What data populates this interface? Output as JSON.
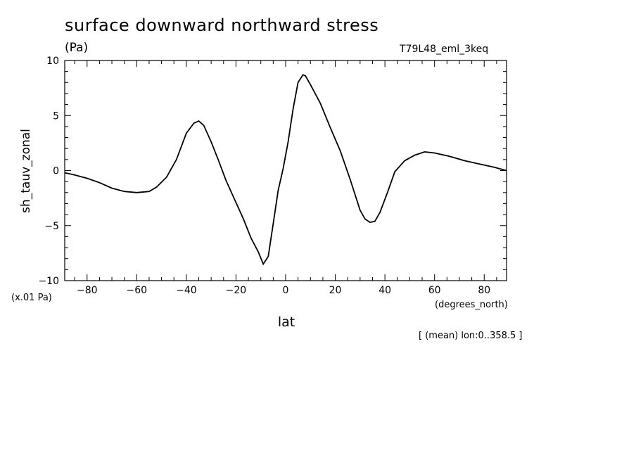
{
  "chart_data": {
    "type": "line",
    "title": "surface downward northward stress",
    "units": "(Pa)",
    "run_label": "T79L48_eml_3keq",
    "ylabel": "sh_tauv_zonal",
    "xlabel": "lat",
    "y_scale_label": "(x.01 Pa)",
    "x_units": "(degrees_north)",
    "note": "[ (mean) lon:0..358.5 ]",
    "xlim": [
      -89,
      89
    ],
    "ylim": [
      -10,
      10
    ],
    "x_ticks": [
      -80,
      -60,
      -40,
      -20,
      0,
      20,
      40,
      60,
      80
    ],
    "y_ticks": [
      -10,
      -5,
      0,
      5,
      10
    ],
    "grid": false,
    "series": [
      {
        "x": [
          -89,
          -85,
          -80,
          -75,
          -70,
          -65,
          -60,
          -55,
          -52,
          -48,
          -44,
          -40,
          -37,
          -35,
          -33,
          -30,
          -27,
          -24,
          -20,
          -17,
          -14,
          -11,
          -9,
          -7,
          -5,
          -3,
          -1,
          1,
          3,
          5,
          7,
          8,
          10,
          14,
          18,
          22,
          26,
          30,
          32,
          34,
          36,
          38,
          41,
          44,
          48,
          52,
          56,
          60,
          66,
          72,
          78,
          84,
          89
        ],
        "y": [
          -0.2,
          -0.4,
          -0.7,
          -1.1,
          -1.6,
          -1.9,
          -2.0,
          -1.9,
          -1.5,
          -0.6,
          1.0,
          3.4,
          4.3,
          4.5,
          4.1,
          2.6,
          0.9,
          -0.9,
          -2.9,
          -4.4,
          -6.1,
          -7.4,
          -8.5,
          -7.8,
          -4.8,
          -1.8,
          0.2,
          2.6,
          5.6,
          8.0,
          8.7,
          8.6,
          7.8,
          6.1,
          3.9,
          1.8,
          -0.8,
          -3.6,
          -4.4,
          -4.7,
          -4.6,
          -3.8,
          -2.0,
          -0.1,
          0.9,
          1.4,
          1.7,
          1.6,
          1.3,
          0.9,
          0.6,
          0.3,
          0.0
        ]
      }
    ]
  }
}
